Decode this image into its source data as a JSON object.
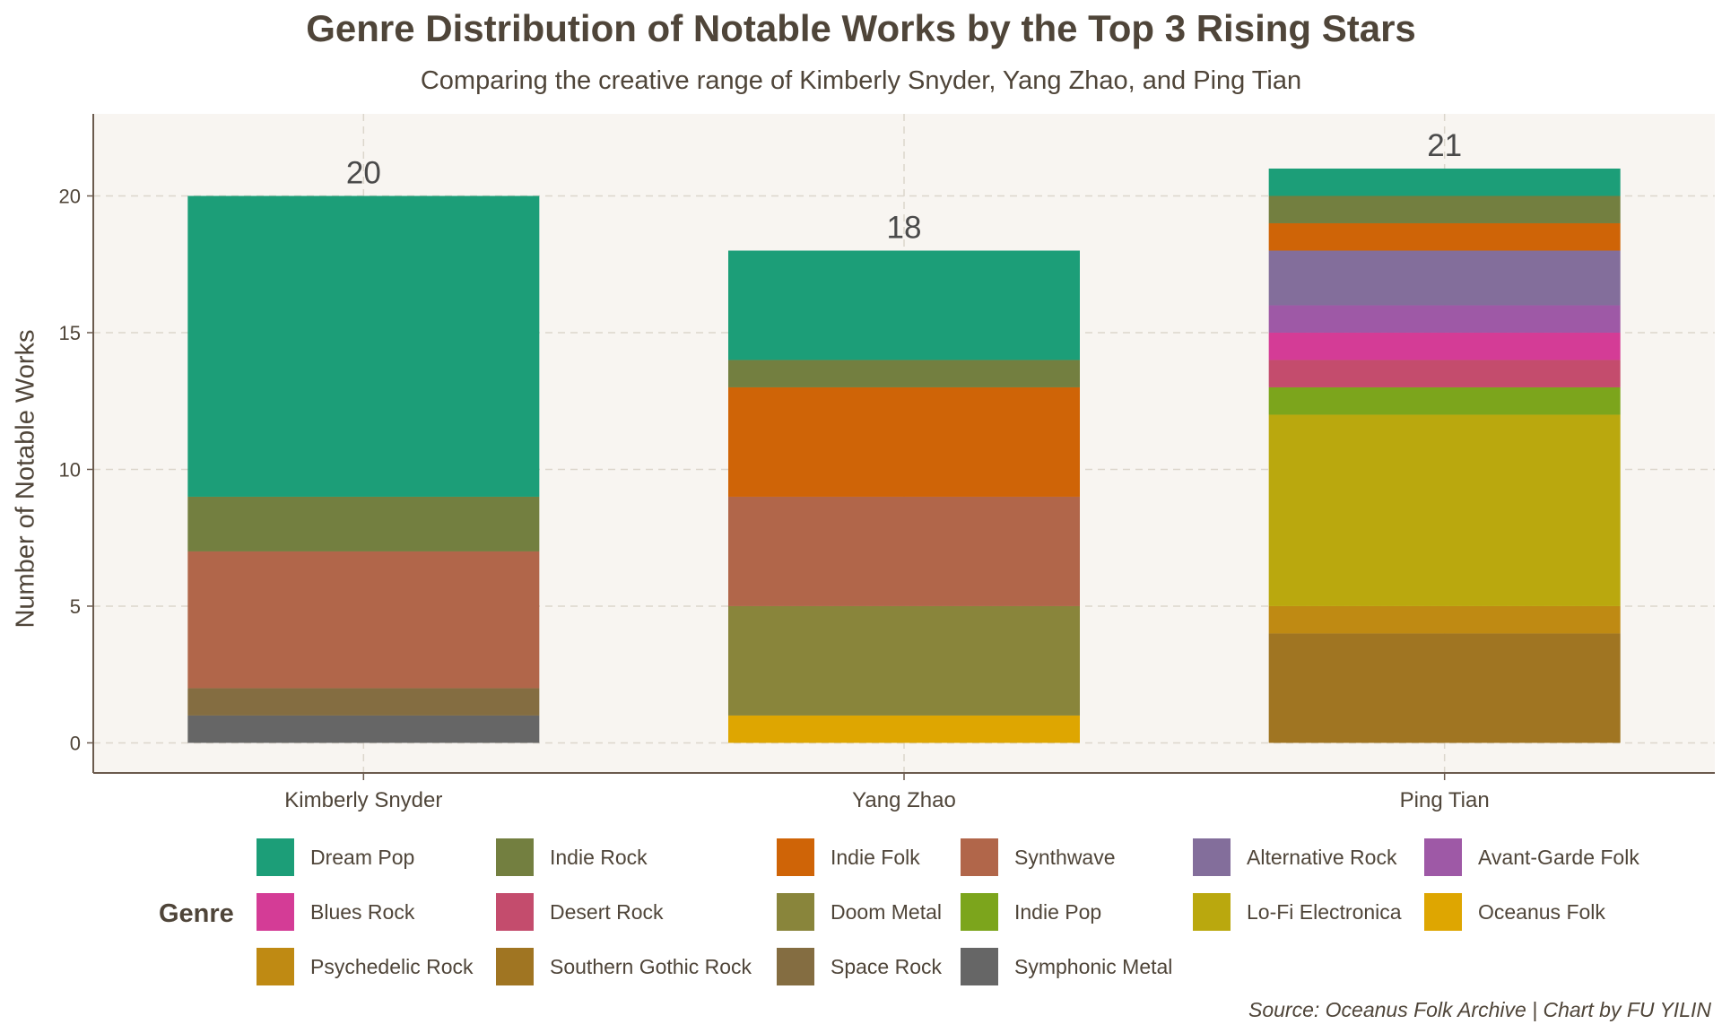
{
  "title": "Genre Distribution of Notable Works by the Top 3 Rising Stars",
  "subtitle": "Comparing the creative range of Kimberly Snyder, Yang Zhao, and Ping Tian",
  "caption": "Source: Oceanus Folk Archive  |  Chart by FU YILIN",
  "legend_title": "Genre",
  "colors": {
    "background": "#ffffff",
    "panel": "#f8f5f1",
    "grid": "#dcd6cc",
    "axis": "#6b5b4e",
    "text": "#4f4539"
  },
  "chart_data": {
    "type": "bar",
    "stacked": true,
    "title": "Genre Distribution of Notable Works by the Top 3 Rising Stars",
    "subtitle": "Comparing the creative range of Kimberly Snyder, Yang Zhao, and Ping Tian",
    "xlabel": "",
    "ylabel": "Number of Notable Works",
    "ylim": [
      -1.1,
      23
    ],
    "yticks": [
      0,
      5,
      10,
      15,
      20
    ],
    "grid": true,
    "legend_position": "bottom",
    "categories": [
      "Kimberly Snyder",
      "Yang Zhao",
      "Ping Tian"
    ],
    "totals": [
      20,
      18,
      21
    ],
    "series": [
      {
        "name": "Symphonic Metal",
        "color": "#666666",
        "values": [
          1,
          0,
          0
        ]
      },
      {
        "name": "Space Rock",
        "color": "#846d41",
        "values": [
          1,
          0,
          0
        ]
      },
      {
        "name": "Southern Gothic Rock",
        "color": "#a07522",
        "values": [
          0,
          0,
          4
        ]
      },
      {
        "name": "Psychedelic Rock",
        "color": "#bf8a13",
        "values": [
          0,
          0,
          1
        ]
      },
      {
        "name": "Oceanus Folk",
        "color": "#dea601",
        "values": [
          0,
          1,
          0
        ]
      },
      {
        "name": "Lo-Fi Electronica",
        "color": "#baa80e",
        "values": [
          0,
          0,
          7
        ]
      },
      {
        "name": "Indie Pop",
        "color": "#7ca51c",
        "values": [
          0,
          0,
          1
        ]
      },
      {
        "name": "Doom Metal",
        "color": "#89853b",
        "values": [
          0,
          4,
          0
        ]
      },
      {
        "name": "Desert Rock",
        "color": "#c44c6d",
        "values": [
          0,
          0,
          1
        ]
      },
      {
        "name": "Blues Rock",
        "color": "#d43c96",
        "values": [
          0,
          0,
          1
        ]
      },
      {
        "name": "Avant-Garde Folk",
        "color": "#9e59a6",
        "values": [
          0,
          0,
          1
        ]
      },
      {
        "name": "Alternative Rock",
        "color": "#836e9b",
        "values": [
          0,
          0,
          2
        ]
      },
      {
        "name": "Synthwave",
        "color": "#b1664a",
        "values": [
          5,
          4,
          0
        ]
      },
      {
        "name": "Indie Folk",
        "color": "#cf6407",
        "values": [
          0,
          4,
          1
        ]
      },
      {
        "name": "Indie Rock",
        "color": "#737f40",
        "values": [
          2,
          1,
          1
        ]
      },
      {
        "name": "Dream Pop",
        "color": "#1c9e78",
        "values": [
          11,
          4,
          1
        ]
      }
    ]
  },
  "legend": [
    {
      "name": "Dream Pop",
      "color": "#1c9e78"
    },
    {
      "name": "Indie Rock",
      "color": "#737f40"
    },
    {
      "name": "Indie Folk",
      "color": "#cf6407"
    },
    {
      "name": "Synthwave",
      "color": "#b1664a"
    },
    {
      "name": "Alternative Rock",
      "color": "#836e9b"
    },
    {
      "name": "Avant-Garde Folk",
      "color": "#9e59a6"
    },
    {
      "name": "Blues Rock",
      "color": "#d43c96"
    },
    {
      "name": "Desert Rock",
      "color": "#c44c6d"
    },
    {
      "name": "Doom Metal",
      "color": "#89853b"
    },
    {
      "name": "Indie Pop",
      "color": "#7ca51c"
    },
    {
      "name": "Lo-Fi Electronica",
      "color": "#baa80e"
    },
    {
      "name": "Oceanus Folk",
      "color": "#dea601"
    },
    {
      "name": "Psychedelic Rock",
      "color": "#bf8a13"
    },
    {
      "name": "Southern Gothic Rock",
      "color": "#a07522"
    },
    {
      "name": "Space Rock",
      "color": "#846d41"
    },
    {
      "name": "Symphonic Metal",
      "color": "#666666"
    }
  ]
}
